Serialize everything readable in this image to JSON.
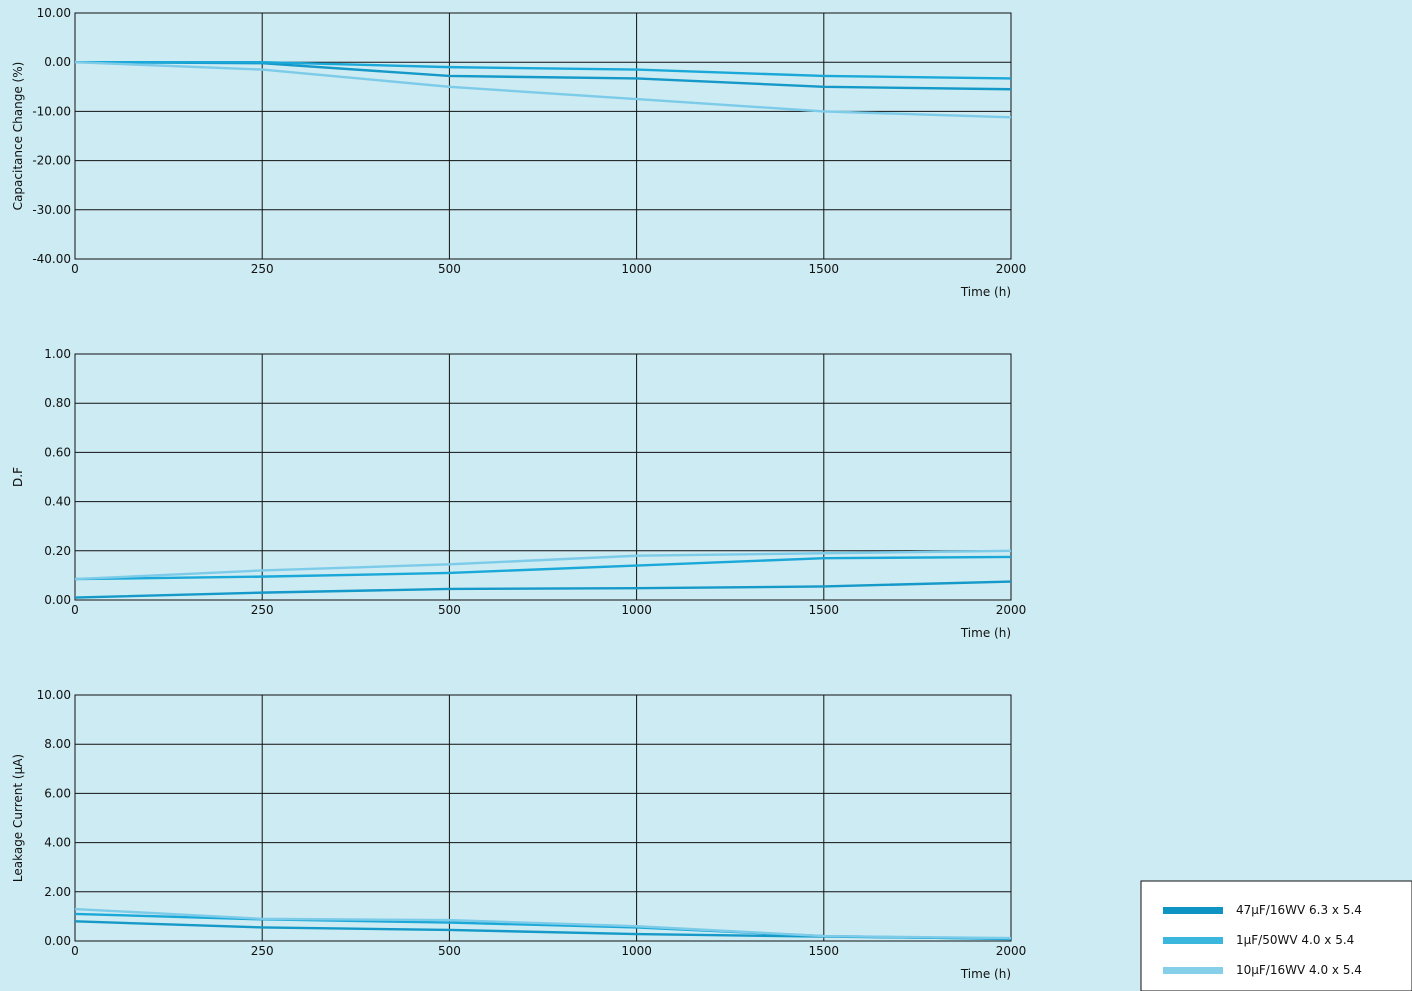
{
  "colors": {
    "background": "#cdebf2",
    "series_dark": "#1499c8",
    "series_mid": "#1aa8d8",
    "series_light": "#7ccbe9"
  },
  "legend": {
    "items": [
      {
        "label": "47μF/16WV 6.3 x 5.4",
        "color": "#0e94c3"
      },
      {
        "label": "1μF/50WV 4.0 x 5.4",
        "color": "#3bb6dd"
      },
      {
        "label": "10μF/16WV 4.0 x 5.4",
        "color": "#85cfe8"
      }
    ]
  },
  "chart_data": [
    {
      "type": "line",
      "title": "",
      "xlabel": "Time (h)",
      "ylabel": "Capacitance Change (%)",
      "x_categories": [
        "0",
        "250",
        "500",
        "1000",
        "1500",
        "2000"
      ],
      "y_ticks": [
        "10.00",
        "0.00",
        "-10.00",
        "-20.00",
        "-30.00",
        "-40.00"
      ],
      "ylim": [
        -40,
        10
      ],
      "grid": true,
      "series": [
        {
          "color": "#1499c8",
          "values": [
            0,
            -0.2,
            -2.8,
            -3.3,
            -5.0,
            -5.5
          ]
        },
        {
          "color": "#1aa8d8",
          "values": [
            0,
            0,
            -1.0,
            -1.5,
            -2.8,
            -3.3
          ]
        },
        {
          "color": "#7ccbe9",
          "values": [
            0,
            -1.5,
            -5.0,
            -7.5,
            -10.0,
            -11.2
          ]
        }
      ]
    },
    {
      "type": "line",
      "title": "",
      "xlabel": "Time (h)",
      "ylabel": "D.F",
      "x_categories": [
        "0",
        "250",
        "500",
        "1000",
        "1500",
        "2000"
      ],
      "y_ticks": [
        "1.00",
        "0.80",
        "0.60",
        "0.40",
        "0.20",
        "0.00"
      ],
      "ylim": [
        0,
        1
      ],
      "grid": true,
      "series": [
        {
          "color": "#1499c8",
          "values": [
            0.01,
            0.03,
            0.045,
            0.048,
            0.055,
            0.075
          ]
        },
        {
          "color": "#1aa8d8",
          "values": [
            0.085,
            0.095,
            0.11,
            0.14,
            0.17,
            0.175
          ]
        },
        {
          "color": "#7ccbe9",
          "values": [
            0.085,
            0.12,
            0.145,
            0.18,
            0.19,
            0.2
          ]
        }
      ]
    },
    {
      "type": "line",
      "title": "",
      "xlabel": "Time (h)",
      "ylabel": "Leakage Current (μA)",
      "x_categories": [
        "0",
        "250",
        "500",
        "1000",
        "1500",
        "2000"
      ],
      "y_ticks": [
        "10.00",
        "8.00",
        "6.00",
        "4.00",
        "2.00",
        "0.00"
      ],
      "ylim": [
        0,
        10
      ],
      "grid": true,
      "series": [
        {
          "color": "#1499c8",
          "values": [
            0.8,
            0.55,
            0.45,
            0.28,
            0.18,
            0.1
          ]
        },
        {
          "color": "#1aa8d8",
          "values": [
            1.1,
            0.88,
            0.75,
            0.55,
            0.2,
            0.08
          ]
        },
        {
          "color": "#7ccbe9",
          "values": [
            1.3,
            0.9,
            0.85,
            0.6,
            0.2,
            0.12
          ]
        }
      ]
    }
  ]
}
